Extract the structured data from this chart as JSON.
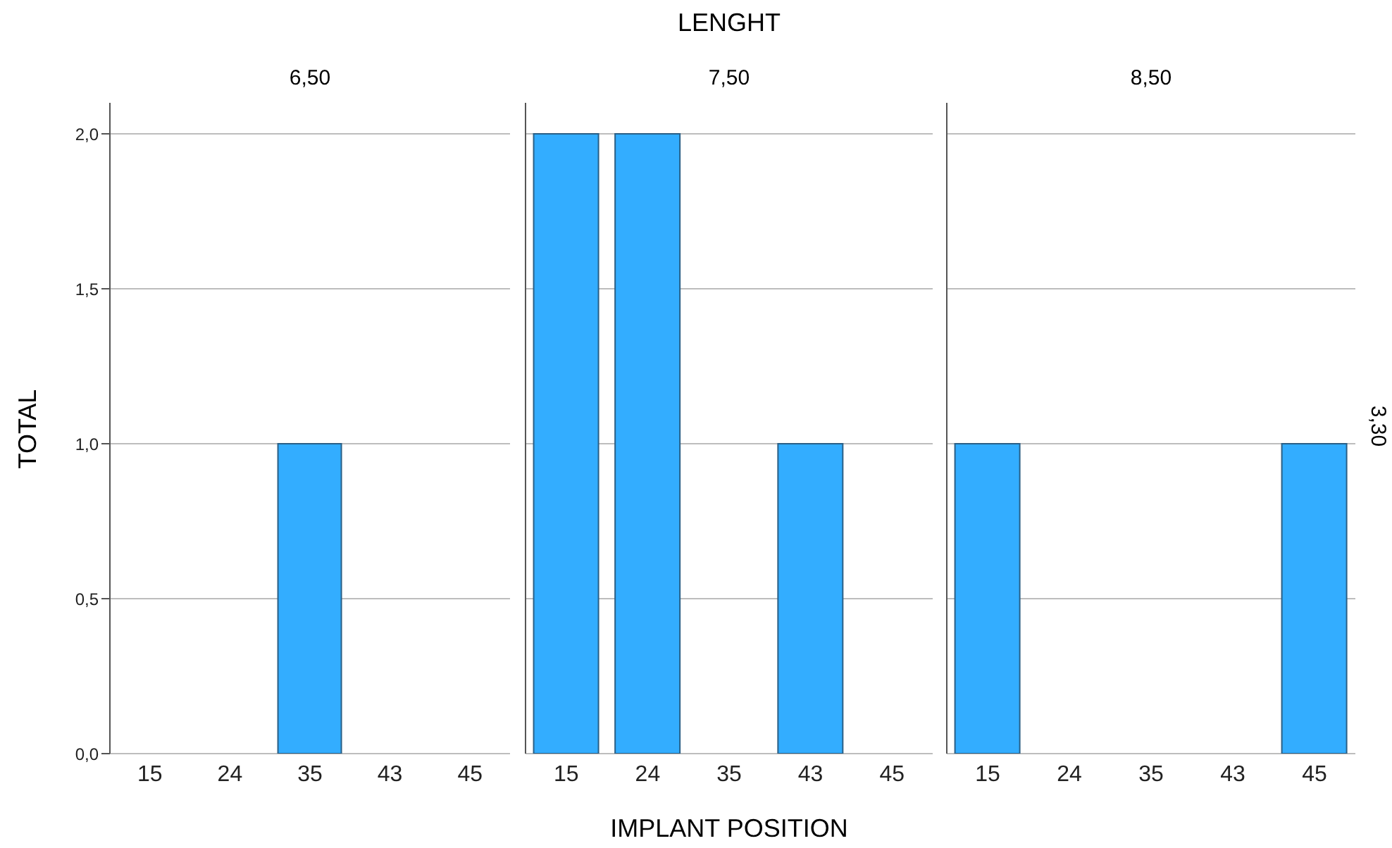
{
  "chart_data": [
    {
      "type": "bar",
      "title": "6,50",
      "ylabel": "TOTAL",
      "categories": [
        "15",
        "24",
        "35",
        "43",
        "45"
      ],
      "values": [
        0,
        0,
        1,
        0,
        0
      ],
      "color": "#33adff",
      "ylim": [
        0,
        2.1
      ],
      "yticks": [
        {
          "value": 0,
          "label": "0,0"
        },
        {
          "value": 0.5,
          "label": "0,5"
        },
        {
          "value": 1,
          "label": "1,0"
        },
        {
          "value": 1.5,
          "label": "1,5"
        },
        {
          "value": 2,
          "label": "2,0"
        }
      ],
      "grid": "y"
    },
    {
      "type": "bar",
      "title": "7,50",
      "xlabel": "IMPLANT POSITION",
      "annotations": [
        "LENGHT"
      ],
      "categories": [
        "15",
        "24",
        "35",
        "43",
        "45"
      ],
      "values": [
        2,
        2,
        0,
        1,
        0
      ],
      "color": "#33adff",
      "ylim": [
        0,
        2.1
      ],
      "yticks": [
        {
          "value": 0,
          "label": null
        },
        {
          "value": 0.5,
          "label": null
        },
        {
          "value": 1,
          "label": null
        },
        {
          "value": 1.5,
          "label": null
        },
        {
          "value": 2,
          "label": null
        }
      ],
      "grid": "y",
      "tick_labels": "x"
    },
    {
      "type": "bar",
      "title": "8,50",
      "y2label": "3,30",
      "categories": [
        "15",
        "24",
        "35",
        "43",
        "45"
      ],
      "values": [
        1,
        0,
        0,
        0,
        1
      ],
      "color": "#33adff",
      "ylim": [
        0,
        2.1
      ],
      "yticks": [
        {
          "value": 0,
          "label": null
        },
        {
          "value": 0.5,
          "label": null
        },
        {
          "value": 1,
          "label": null
        },
        {
          "value": 1.5,
          "label": null
        },
        {
          "value": 2,
          "label": null
        }
      ],
      "grid": "y",
      "tick_labels": "x"
    }
  ]
}
